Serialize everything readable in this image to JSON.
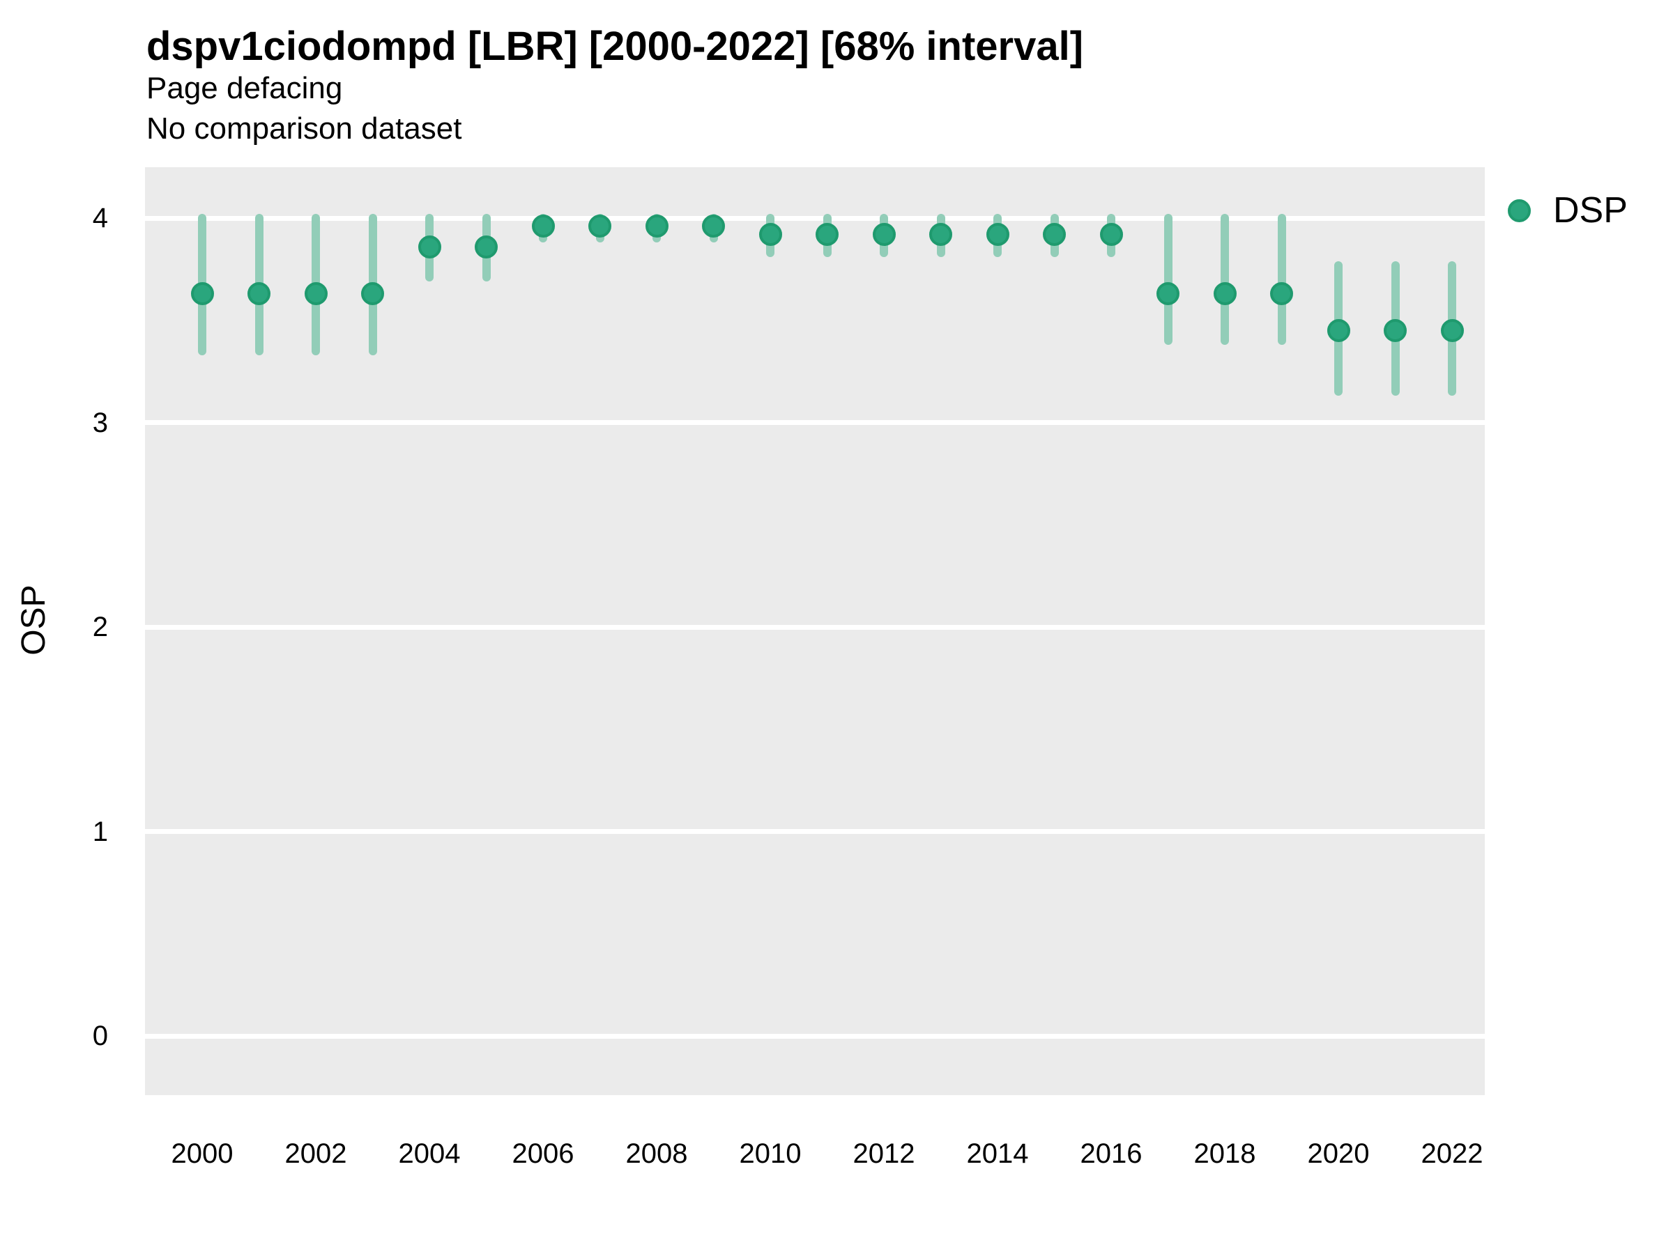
{
  "header": {
    "title": "dspv1ciodompd [LBR] [2000-2022] [68% interval]",
    "subtitle1": "Page defacing",
    "subtitle2": "No comparison dataset"
  },
  "y_axis": {
    "label": "OSP",
    "ticks": [
      "4",
      "3",
      "2",
      "1",
      "0"
    ]
  },
  "legend": {
    "label": "DSP",
    "marker_color": "#2aa67d"
  },
  "colors": {
    "panel_background": "#ebebeb",
    "gridline": "#ffffff",
    "point_fill": "#2aa67d",
    "point_border": "#1f9a6e",
    "interval_bar": "#92cdb8",
    "text": "#000000"
  },
  "chart_data": {
    "type": "scatter",
    "title": "dspv1ciodompd [LBR] [2000-2022] [68% interval]",
    "subtitle": "Page defacing / No comparison dataset",
    "xlabel": "",
    "ylabel": "OSP",
    "series_name": "DSP",
    "interval_level": "68%",
    "x": [
      2000,
      2001,
      2002,
      2003,
      2004,
      2005,
      2006,
      2007,
      2008,
      2009,
      2010,
      2011,
      2012,
      2013,
      2014,
      2015,
      2016,
      2017,
      2018,
      2019,
      2020,
      2021,
      2022
    ],
    "values": [
      3.63,
      3.63,
      3.63,
      3.63,
      3.86,
      3.86,
      3.96,
      3.96,
      3.96,
      3.96,
      3.92,
      3.92,
      3.92,
      3.92,
      3.92,
      3.92,
      3.92,
      3.63,
      3.63,
      3.63,
      3.45,
      3.45,
      3.45
    ],
    "interval_low": [
      3.35,
      3.35,
      3.35,
      3.35,
      3.71,
      3.71,
      3.9,
      3.9,
      3.9,
      3.9,
      3.83,
      3.83,
      3.83,
      3.83,
      3.83,
      3.83,
      3.83,
      3.4,
      3.4,
      3.4,
      3.15,
      3.15,
      3.15
    ],
    "interval_high": [
      4.0,
      4.0,
      4.0,
      4.0,
      4.0,
      4.0,
      4.0,
      4.0,
      4.0,
      4.0,
      4.0,
      4.0,
      4.0,
      4.0,
      4.0,
      4.0,
      4.0,
      4.0,
      4.0,
      4.0,
      3.77,
      3.77,
      3.77
    ],
    "xticks": [
      2000,
      2002,
      2004,
      2006,
      2008,
      2010,
      2012,
      2014,
      2016,
      2018,
      2020,
      2022
    ],
    "yticks": [
      0,
      1,
      2,
      3,
      4
    ],
    "ylim": [
      -0.29,
      4.25
    ],
    "xlim": [
      1999,
      2022.6
    ],
    "grid": "horizontal-major-only",
    "legend_position": "right-top"
  }
}
